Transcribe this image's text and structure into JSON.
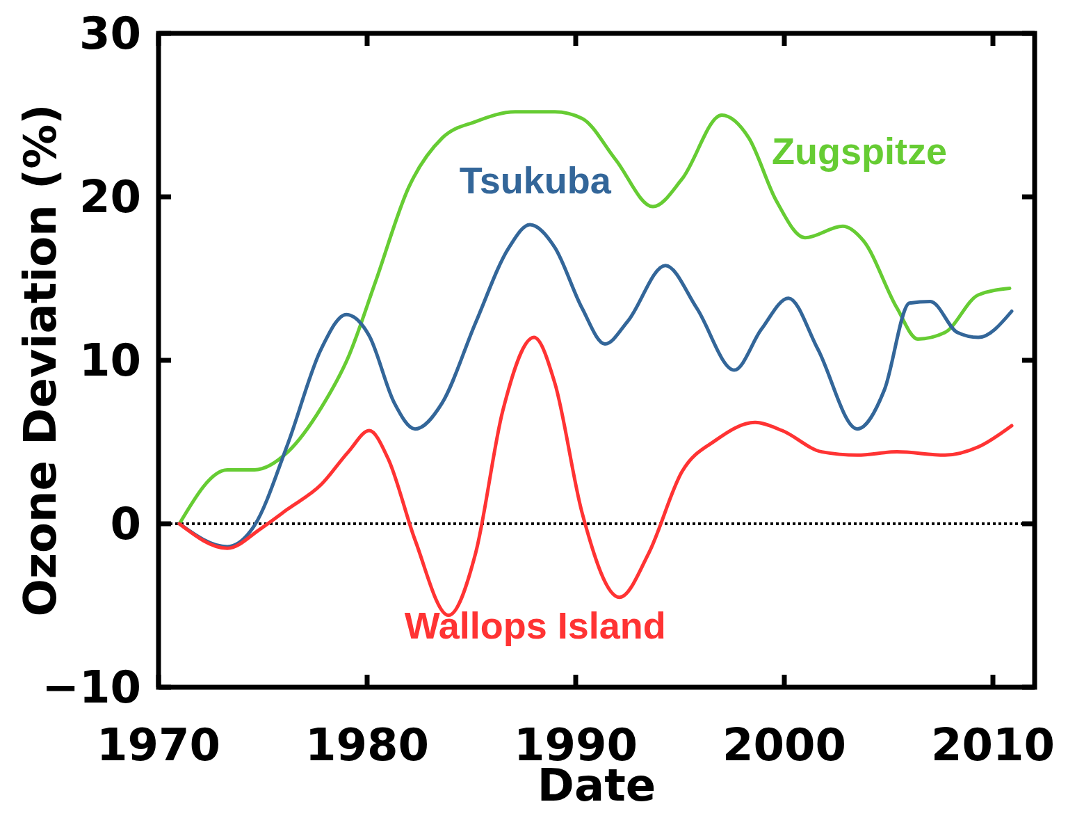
{
  "chart_data": {
    "type": "line",
    "xlabel": "Date",
    "ylabel": "Ozone Deviation (%)",
    "xlim": [
      1970,
      2012
    ],
    "xticks": [
      1970,
      1980,
      1990,
      2000,
      2010
    ],
    "ylim": [
      -10,
      30
    ],
    "yticks": [
      {
        "value": -10,
        "label": "−10"
      },
      0,
      10,
      20,
      30
    ],
    "grid": false,
    "marker": "none",
    "line_style": "solid",
    "ref_lines": [
      {
        "axis": "y",
        "value": 0,
        "line_style": "dotted",
        "color": "#000000"
      }
    ],
    "series": [
      {
        "name": "Zugspitze",
        "color": "#66cc33",
        "x": [
          1971,
          1973.3,
          1974.6,
          1976.2,
          1977.8,
          1979.1,
          1980.4,
          1982,
          1983.6,
          1985.2,
          1987.1,
          1989,
          1990.3,
          1991.9,
          1993.7,
          1995.1,
          1997,
          1998.3,
          1999.6,
          2001,
          2002.8,
          2003.8,
          2005.4,
          2006.4,
          2007.7,
          2009.3,
          2010.8
        ],
        "values": [
          0,
          3.3,
          3.3,
          4.4,
          7.1,
          10.2,
          14.8,
          20.6,
          23.6,
          24.6,
          25.2,
          25.2,
          24.8,
          22.3,
          19.4,
          21.1,
          25,
          23.6,
          19.8,
          17.5,
          18.2,
          17.3,
          13.2,
          11.3,
          11.7,
          14,
          14.4
        ]
      },
      {
        "name": "Tsukuba",
        "color": "#336699",
        "x": [
          1971,
          1973.3,
          1974.6,
          1976.2,
          1977.8,
          1979,
          1980.1,
          1981.3,
          1982.3,
          1983.6,
          1985.2,
          1986.8,
          1987.8,
          1989,
          1990.3,
          1991.4,
          1992.5,
          1994.3,
          1995.8,
          1997.6,
          1998.9,
          2000.2,
          2001.6,
          2003.5,
          2004.8,
          2006,
          2007,
          2008.3,
          2009.3,
          2010.9
        ],
        "values": [
          0,
          -1.4,
          -0.1,
          4.9,
          10.7,
          12.8,
          11.5,
          7.4,
          5.8,
          7.4,
          12.3,
          16.9,
          18.3,
          16.9,
          13.2,
          11,
          12.4,
          15.8,
          13.2,
          9.4,
          11.9,
          13.8,
          10.7,
          5.8,
          8.2,
          13.5,
          13.6,
          11.7,
          11.4,
          13
        ]
      },
      {
        "name": "Wallops Island",
        "color": "#ff3333",
        "x": [
          1971,
          1973.3,
          1974.9,
          1976.2,
          1977.8,
          1979.1,
          1980.1,
          1981,
          1982.3,
          1983.9,
          1985.2,
          1986.5,
          1988,
          1989,
          1990.3,
          1992.1,
          1993.5,
          1995.1,
          1996.7,
          1998.6,
          1999.9,
          2001.8,
          2003.5,
          2005.4,
          2007.7,
          2009.3,
          2010.9
        ],
        "values": [
          0,
          -1.5,
          -0.3,
          0.9,
          2.4,
          4.4,
          5.7,
          4,
          -1,
          -5.6,
          -1.8,
          6.9,
          11.4,
          8.6,
          0.7,
          -4.5,
          -1.8,
          3.2,
          5.1,
          6.2,
          5.7,
          4.4,
          4.2,
          4.4,
          4.2,
          4.7,
          6
        ]
      }
    ]
  }
}
